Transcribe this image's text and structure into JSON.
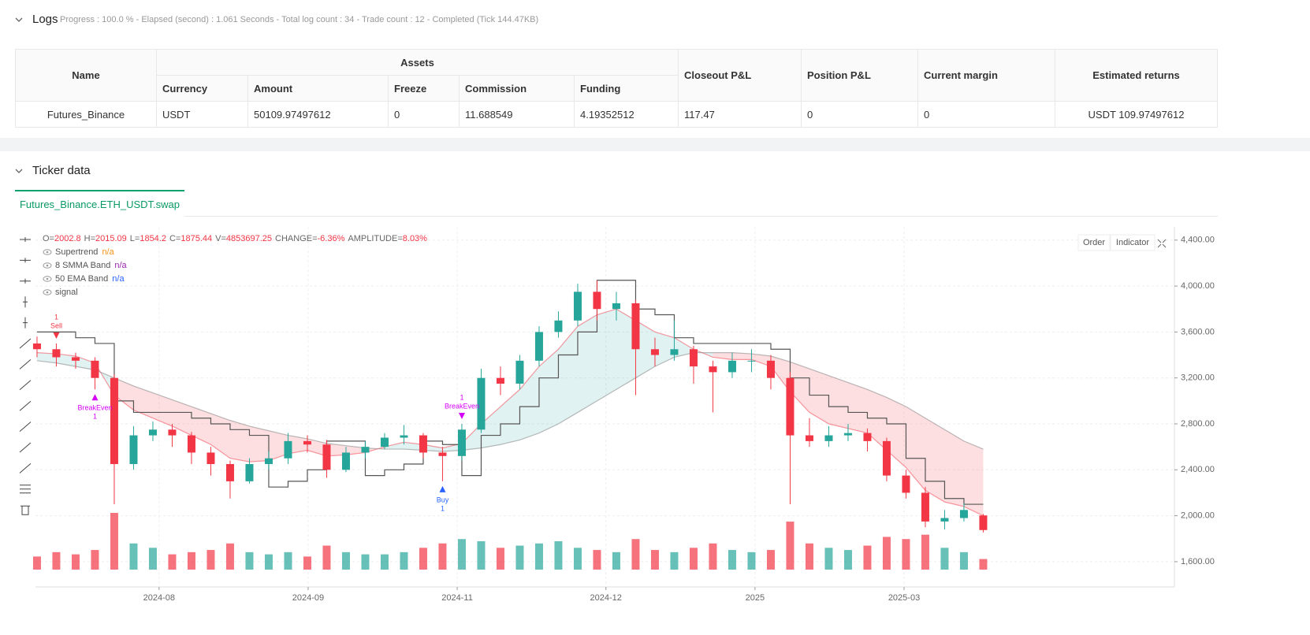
{
  "logs": {
    "title": "Logs",
    "status": "Progress : 100.0 % - Elapsed (second) : 1.061  Seconds - Total log count : 34 - Trade count : 12 - Completed (Tick 144.47KB)",
    "table": {
      "name": "Name",
      "assets": "Assets",
      "sub": [
        "Currency",
        "Amount",
        "Freeze",
        "Commission",
        "Funding"
      ],
      "rest": [
        "Closeout P&L",
        "Position P&L",
        "Current margin",
        "Estimated returns"
      ],
      "rows": [
        [
          "Futures_Binance",
          "USDT",
          "50109.97497612",
          "0",
          "11.688549",
          "4.19352512",
          "117.47",
          "0",
          "0",
          "USDT 109.97497612"
        ]
      ]
    }
  },
  "ticker": {
    "title": "Ticker data",
    "tab": "Futures_Binance.ETH_USDT.swap",
    "buttons": [
      "Order",
      "Indicator"
    ],
    "labels": [
      "O=",
      "H=",
      "L=",
      "C=",
      "V=",
      "CHANGE=",
      "AMPLITUDE="
    ],
    "change": "-6.36%",
    "amplitude": "8.03%",
    "indicators": [
      {
        "name": "Supertrend",
        "value": "n/a",
        "color": "#f7931a"
      },
      {
        "name": "8 SMMA Band",
        "value": "n/a",
        "color": "#9c27b0"
      },
      {
        "name": "50 EMA Band",
        "value": "n/a",
        "color": "#2962ff"
      },
      {
        "name": "signal"
      }
    ]
  },
  "chart_data": {
    "type": "candlestick",
    "x": [
      0,
      5,
      10,
      15,
      20,
      25,
      30,
      35,
      40,
      45,
      50,
      55,
      60,
      65,
      70,
      75,
      80,
      85,
      90,
      95,
      100,
      105,
      110,
      115,
      120,
      125,
      130,
      135,
      140,
      145,
      150,
      155,
      160,
      165,
      170,
      175,
      180,
      185,
      190,
      195,
      200,
      205,
      210,
      215,
      220,
      225,
      230,
      235,
      240,
      245
    ],
    "open": [
      3500,
      3450,
      3380,
      3350,
      3200,
      2450,
      2700,
      2750,
      2700,
      2550,
      2450,
      2300,
      2450,
      2500,
      2650,
      2620,
      2400,
      2550,
      2600,
      2680,
      2700,
      2550,
      2520,
      2750,
      3200,
      3150,
      3350,
      3600,
      3700,
      3950,
      3800,
      3850,
      3450,
      3400,
      3450,
      3300,
      3250,
      3350,
      3350,
      3200,
      2700,
      2650,
      2700,
      2720,
      2650,
      2350,
      2200,
      1950,
      1980,
      2002.8
    ],
    "high": [
      3560,
      3500,
      3420,
      3380,
      3230,
      2780,
      2820,
      2800,
      2730,
      2600,
      2480,
      2500,
      2560,
      2720,
      2700,
      2660,
      2600,
      2650,
      2720,
      2790,
      2720,
      2600,
      2800,
      3280,
      3300,
      3400,
      3650,
      3780,
      4020,
      4050,
      3950,
      3880,
      3550,
      3700,
      3480,
      3350,
      3420,
      3450,
      3400,
      3250,
      2850,
      2780,
      2800,
      2760,
      2680,
      2400,
      2250,
      2050,
      2110,
      2015.09
    ],
    "low": [
      3380,
      3300,
      3280,
      3100,
      2100,
      2400,
      2650,
      2600,
      2450,
      2350,
      2150,
      2280,
      2400,
      2450,
      2550,
      2330,
      2380,
      2500,
      2580,
      2620,
      2500,
      2300,
      2480,
      2720,
      3050,
      3100,
      3300,
      3550,
      3650,
      3700,
      3700,
      3050,
      3300,
      3350,
      3150,
      2900,
      3200,
      3250,
      3100,
      2100,
      2600,
      2600,
      2650,
      2560,
      2300,
      2150,
      1900,
      1880,
      1950,
      1854.2
    ],
    "close": [
      3450,
      3380,
      3350,
      3200,
      2450,
      2700,
      2750,
      2700,
      2550,
      2450,
      2300,
      2450,
      2500,
      2650,
      2620,
      2400,
      2550,
      2600,
      2680,
      2700,
      2550,
      2520,
      2750,
      3200,
      3150,
      3350,
      3600,
      3700,
      3950,
      3800,
      3850,
      3450,
      3400,
      3450,
      3300,
      3250,
      3350,
      3350,
      3200,
      2700,
      2650,
      2700,
      2720,
      2650,
      2350,
      2200,
      1950,
      1980,
      2050,
      1875.44
    ],
    "volume": [
      6000000,
      8000000,
      7000000,
      9000000,
      26000000,
      12000000,
      10000000,
      7000000,
      8000000,
      9000000,
      12000000,
      8000000,
      7000000,
      8000000,
      6000000,
      11000000,
      8000000,
      7000000,
      7000000,
      8000000,
      10000000,
      12000000,
      14000000,
      13000000,
      10000000,
      11000000,
      12000000,
      13000000,
      10000000,
      9000000,
      8000000,
      14000000,
      9000000,
      8000000,
      10000000,
      12000000,
      9000000,
      8000000,
      9000000,
      22000000,
      12000000,
      10000000,
      9000000,
      11000000,
      15000000,
      14000000,
      16000000,
      10000000,
      8000000,
      4853697.25
    ],
    "supertrend": [
      3600,
      3600,
      3550,
      3500,
      3000,
      2900,
      2900,
      2900,
      2850,
      2800,
      2750,
      2700,
      2250,
      2300,
      2400,
      2650,
      2650,
      2350,
      2400,
      2450,
      2650,
      2620,
      2350,
      2700,
      2800,
      2950,
      3200,
      3400,
      3600,
      4050,
      4050,
      3800,
      3750,
      3550,
      3500,
      3500,
      3500,
      3500,
      3450,
      3200,
      3050,
      2950,
      2900,
      2850,
      2800,
      2500,
      2300,
      2150,
      2100,
      2100
    ],
    "smma": [
      3420,
      3410,
      3390,
      3330,
      3050,
      2920,
      2850,
      2780,
      2700,
      2620,
      2500,
      2470,
      2480,
      2540,
      2570,
      2520,
      2530,
      2550,
      2600,
      2640,
      2620,
      2590,
      2630,
      2800,
      2950,
      3100,
      3300,
      3450,
      3650,
      3750,
      3800,
      3700,
      3600,
      3550,
      3450,
      3380,
      3360,
      3360,
      3300,
      3080,
      2900,
      2800,
      2760,
      2720,
      2570,
      2420,
      2220,
      2120,
      2080,
      2000
    ],
    "ema": [
      3350,
      3330,
      3300,
      3270,
      3200,
      3130,
      3070,
      3010,
      2950,
      2890,
      2830,
      2780,
      2740,
      2700,
      2670,
      2630,
      2610,
      2590,
      2580,
      2580,
      2570,
      2560,
      2570,
      2590,
      2620,
      2660,
      2720,
      2800,
      2900,
      3000,
      3100,
      3200,
      3300,
      3380,
      3420,
      3420,
      3420,
      3410,
      3390,
      3340,
      3280,
      3220,
      3160,
      3100,
      3030,
      2950,
      2850,
      2750,
      2650,
      2580
    ],
    "up_color": "#26a69a",
    "down_color": "#f23645",
    "supertrend_color": "#555555",
    "xlim": [
      -0.4,
      294.5
    ],
    "ylim": [
      1380,
      4515
    ],
    "xticks": [
      {
        "value": 31.6,
        "label": "2024-08"
      },
      {
        "value": 70.2,
        "label": "2024-09"
      },
      {
        "value": 108.8,
        "label": "2024-11"
      },
      {
        "value": 147.3,
        "label": "2024-12"
      },
      {
        "value": 185.9,
        "label": "2025"
      },
      {
        "value": 224.5,
        "label": "2025-03"
      }
    ],
    "yticks": [
      {
        "value": 1600,
        "label": "1,600.00"
      },
      {
        "value": 2000,
        "label": "2,000.00"
      },
      {
        "value": 2400,
        "label": "2,400.00"
      },
      {
        "value": 2800,
        "label": "2,800.00"
      },
      {
        "value": 3200,
        "label": "3,200.00"
      },
      {
        "value": 3600,
        "label": "3,600.00"
      },
      {
        "value": 4000,
        "label": "4,000.00"
      },
      {
        "value": 4400,
        "label": "4,400.00"
      }
    ],
    "grid": true,
    "signals": [
      {
        "index": 1,
        "label": "Sell",
        "count": 1,
        "color": "#f23645",
        "side": "above"
      },
      {
        "index": 3,
        "label": "BreakEven",
        "count": 1,
        "color": "#d500f9",
        "side": "below"
      },
      {
        "index": 21,
        "label": "Buy",
        "count": 1,
        "color": "#2962ff",
        "side": "below"
      },
      {
        "index": 22,
        "label": "BreakEven",
        "count": 1,
        "color": "#d500f9",
        "side": "above"
      }
    ]
  }
}
